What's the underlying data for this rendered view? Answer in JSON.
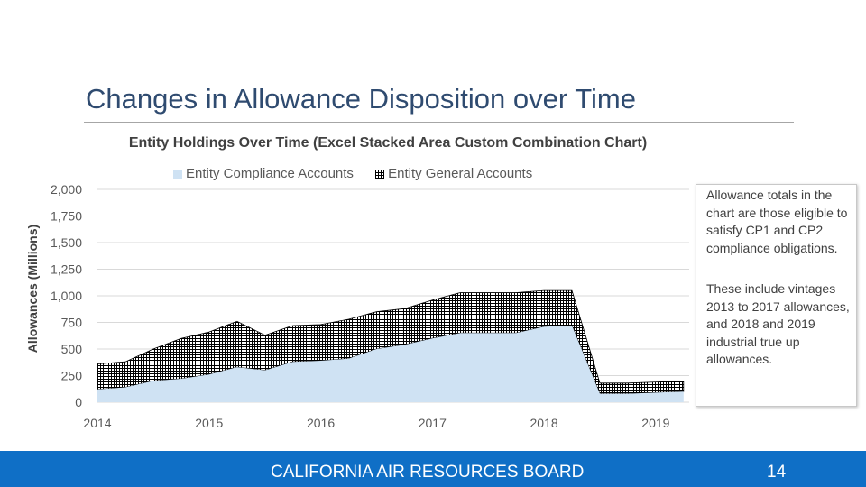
{
  "slide": {
    "title": "Changes in Allowance Disposition over Time",
    "footer": "CALIFORNIA AIR RESOURCES BOARD",
    "page_number": "14"
  },
  "notes": [
    "Allowance totals in the chart are those eligible to satisfy CP1 and CP2 compliance obligations.",
    "These include vintages 2013 to 2017 allowances, and 2018 and 2019 industrial true up allowances."
  ],
  "colors": {
    "compliance_fill": "#cfe2f3",
    "general_grid": "#000000",
    "footer_bg": "#0f6fc6",
    "title_color": "#2f4b70"
  },
  "chart_data": {
    "type": "area",
    "stacked": true,
    "title": "Entity Holdings Over Time (Excel Stacked Area Custom Combination Chart)",
    "xlabel": "",
    "ylabel": "Allowances (Millions)",
    "ylim": [
      0,
      2000
    ],
    "yticks": [
      0,
      250,
      500,
      750,
      1000,
      1250,
      1500,
      1750,
      2000
    ],
    "ytick_labels": [
      "0",
      "250",
      "500",
      "750",
      "1,000",
      "1,250",
      "1,500",
      "1,750",
      "2,000"
    ],
    "xlim": [
      2014.0,
      2019.3
    ],
    "xticks": [
      2014,
      2015,
      2016,
      2017,
      2018,
      2019
    ],
    "xtick_labels": [
      "2014",
      "2015",
      "2016",
      "2017",
      "2018",
      "2019"
    ],
    "legend_position": "top",
    "gridlines": true,
    "x": [
      2014.0,
      2014.25,
      2014.5,
      2014.75,
      2015.0,
      2015.25,
      2015.5,
      2015.75,
      2016.0,
      2016.25,
      2016.5,
      2016.75,
      2017.0,
      2017.25,
      2017.5,
      2017.75,
      2018.0,
      2018.25,
      2018.5,
      2018.75,
      2019.0,
      2019.25
    ],
    "series": [
      {
        "name": "Entity Compliance Accounts",
        "values": [
          120,
          140,
          200,
          220,
          260,
          330,
          300,
          380,
          390,
          410,
          500,
          540,
          600,
          650,
          650,
          650,
          710,
          720,
          80,
          80,
          90,
          100
        ]
      },
      {
        "name": "Entity General Accounts",
        "values": [
          240,
          240,
          300,
          380,
          400,
          430,
          330,
          340,
          340,
          370,
          350,
          340,
          360,
          380,
          380,
          380,
          340,
          330,
          100,
          100,
          100,
          100
        ]
      }
    ]
  }
}
